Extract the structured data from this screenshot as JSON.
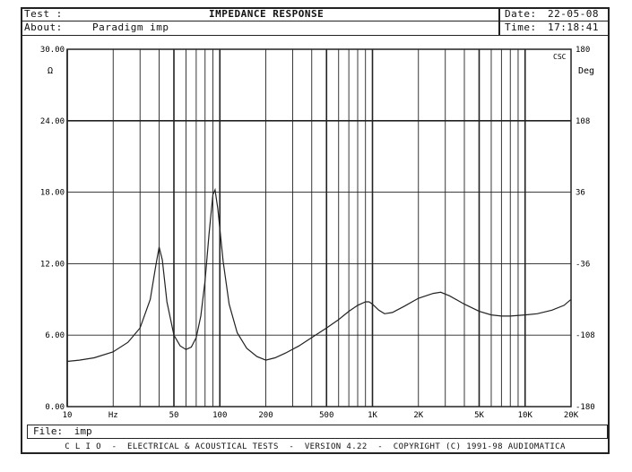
{
  "header": {
    "test_label": "Test :",
    "title": "IMPEDANCE RESPONSE",
    "date_label": "Date:",
    "date_value": "22-05-08",
    "about_label": "About:",
    "about_value": "Paradigm imp",
    "time_label": "Time:",
    "time_value": "17:18:41"
  },
  "file": {
    "label": "File:",
    "value": "imp"
  },
  "footer": "C L I O  -  ELECTRICAL & ACOUSTICAL TESTS  -  VERSION 4.22  -  COPYRIGHT (C) 1991-98 AUDIOMATICA",
  "chart_data": {
    "type": "line",
    "title": "IMPEDANCE RESPONSE",
    "x_scale": "log",
    "xlim": [
      10,
      20000
    ],
    "x_tick_labels": [
      {
        "value": 10,
        "label": "10"
      },
      {
        "value": 20,
        "label": "Hz"
      },
      {
        "value": 50,
        "label": "50"
      },
      {
        "value": 100,
        "label": "100"
      },
      {
        "value": 200,
        "label": "200"
      },
      {
        "value": 500,
        "label": "500"
      },
      {
        "value": 1000,
        "label": "1K"
      },
      {
        "value": 2000,
        "label": "2K"
      },
      {
        "value": 5000,
        "label": "5K"
      },
      {
        "value": 10000,
        "label": "10K"
      },
      {
        "value": 20000,
        "label": "20K"
      }
    ],
    "ylabel": "Ω",
    "ylim": [
      0,
      30
    ],
    "y_ticks": [
      "0.00",
      "6.00",
      "12.00",
      "18.00",
      "24.00",
      "30.00"
    ],
    "y2label": "Deg",
    "y2lim": [
      -180,
      180
    ],
    "y2_ticks": [
      "-180",
      "-108",
      "-36",
      "36",
      "108",
      "180"
    ],
    "corner_label": "CSC",
    "grid": true,
    "series": [
      {
        "color": "#222222",
        "points": [
          [
            10,
            3.8
          ],
          [
            12,
            3.9
          ],
          [
            15,
            4.1
          ],
          [
            20,
            4.6
          ],
          [
            25,
            5.4
          ],
          [
            30,
            6.6
          ],
          [
            35,
            9.0
          ],
          [
            38,
            11.8
          ],
          [
            40,
            13.4
          ],
          [
            42,
            12.3
          ],
          [
            45,
            8.8
          ],
          [
            50,
            6.0
          ],
          [
            55,
            5.1
          ],
          [
            60,
            4.8
          ],
          [
            65,
            5.0
          ],
          [
            70,
            5.8
          ],
          [
            75,
            7.6
          ],
          [
            80,
            10.6
          ],
          [
            85,
            14.5
          ],
          [
            90,
            17.8
          ],
          [
            93,
            18.2
          ],
          [
            97,
            16.6
          ],
          [
            105,
            12.2
          ],
          [
            115,
            8.6
          ],
          [
            130,
            6.2
          ],
          [
            150,
            4.9
          ],
          [
            175,
            4.2
          ],
          [
            200,
            3.9
          ],
          [
            230,
            4.1
          ],
          [
            270,
            4.5
          ],
          [
            330,
            5.1
          ],
          [
            400,
            5.8
          ],
          [
            500,
            6.6
          ],
          [
            600,
            7.3
          ],
          [
            700,
            8.0
          ],
          [
            800,
            8.5
          ],
          [
            900,
            8.8
          ],
          [
            950,
            8.8
          ],
          [
            1000,
            8.6
          ],
          [
            1100,
            8.1
          ],
          [
            1200,
            7.8
          ],
          [
            1350,
            7.9
          ],
          [
            1600,
            8.4
          ],
          [
            2000,
            9.1
          ],
          [
            2500,
            9.5
          ],
          [
            2800,
            9.6
          ],
          [
            3200,
            9.3
          ],
          [
            4000,
            8.6
          ],
          [
            5000,
            8.0
          ],
          [
            6000,
            7.7
          ],
          [
            7000,
            7.6
          ],
          [
            8000,
            7.6
          ],
          [
            10000,
            7.7
          ],
          [
            12000,
            7.8
          ],
          [
            15000,
            8.1
          ],
          [
            18000,
            8.5
          ],
          [
            20000,
            9.0
          ]
        ]
      }
    ]
  }
}
